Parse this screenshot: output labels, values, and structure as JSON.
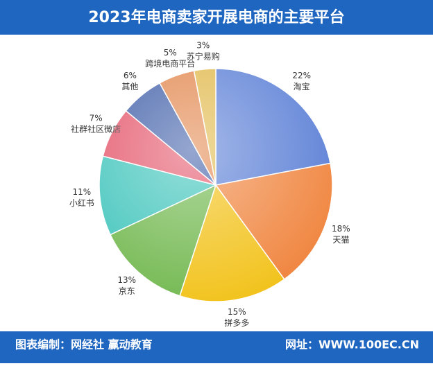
{
  "chart_data": {
    "type": "pie",
    "title": "2023年电商卖家开展电商的主要平台",
    "categories": [
      "淘宝",
      "天猫",
      "拼多多",
      "京东",
      "小红书",
      "社群社区微店",
      "其他",
      "跨境电商平台",
      "苏宁易购"
    ],
    "values": [
      22,
      18,
      15,
      13,
      11,
      7,
      6,
      5,
      3
    ],
    "value_labels": [
      "22%",
      "18%",
      "15%",
      "13%",
      "11%",
      "7%",
      "6%",
      "5%",
      "3%"
    ],
    "colors": [
      "#5b7fd6",
      "#f0853f",
      "#f2c21a",
      "#72b84f",
      "#3fc4bb",
      "#e4556a",
      "#3f5ea8",
      "#e2864c",
      "#e0b84a"
    ]
  },
  "footer": {
    "left": "图表编制：网经社 赢动教育",
    "right": "网址：WWW.100EC.CN"
  }
}
